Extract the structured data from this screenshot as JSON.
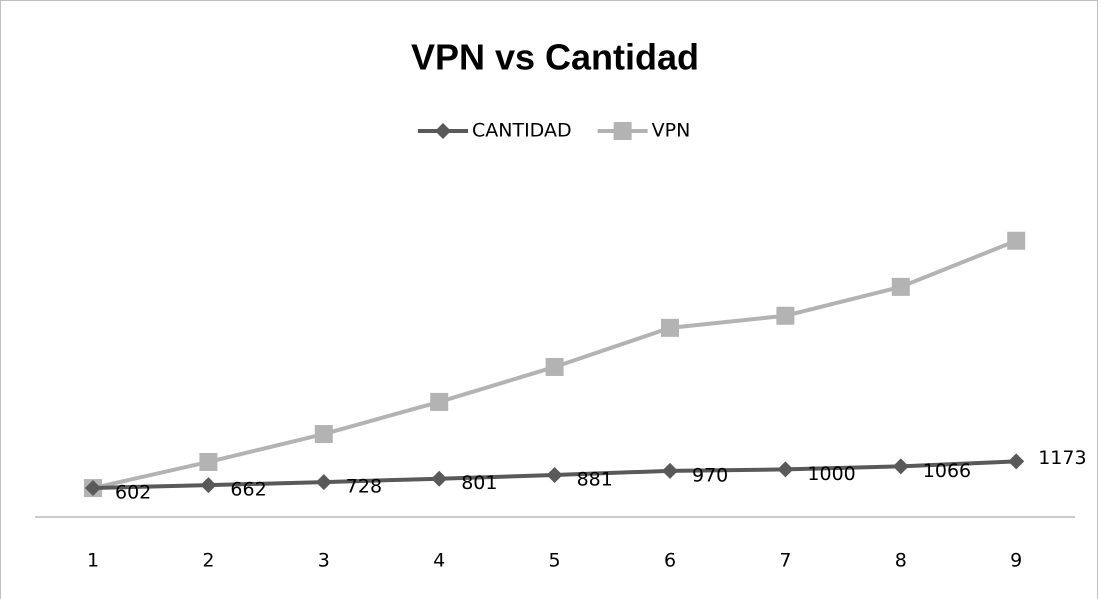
{
  "chart_data": {
    "type": "line",
    "title": "VPN vs Cantidad",
    "categories": [
      "1",
      "2",
      "3",
      "4",
      "5",
      "6",
      "7",
      "8",
      "9"
    ],
    "series": [
      {
        "name": "CANTIDAD",
        "color": "#595959",
        "marker": "diamond",
        "values": [
          602,
          662,
          728,
          801,
          881,
          970,
          1000,
          1066,
          1173
        ]
      },
      {
        "name": "VPN",
        "color": "#b3b3b3",
        "marker": "square",
        "values": [
          600,
          1160,
          1760,
          2450,
          3200,
          4040,
          4300,
          4920,
          5910
        ]
      }
    ],
    "data_labels_series": 0,
    "ylim": [
      0,
      7000
    ],
    "grid": false,
    "legend": "top"
  }
}
